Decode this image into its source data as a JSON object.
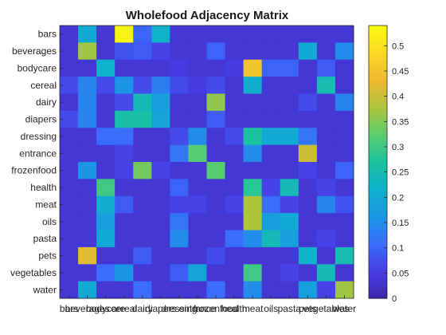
{
  "chart_data": {
    "type": "heatmap",
    "title": "Wholefood Adjacency Matrix",
    "xlabel": "",
    "ylabel": "",
    "categories": [
      "bars",
      "beverages",
      "bodycare",
      "cereal",
      "dairy",
      "diapers",
      "dressing",
      "entrance",
      "frozenfood",
      "health",
      "meat",
      "oils",
      "pasta",
      "pets",
      "vegetables",
      "water"
    ],
    "matrix": [
      [
        0.04,
        0.2,
        0.04,
        0.53,
        0.1,
        0.22,
        0.04,
        0.04,
        0.04,
        0.04,
        0.04,
        0.04,
        0.04,
        0.04,
        0.04,
        0.04
      ],
      [
        0.04,
        0.37,
        0.04,
        0.08,
        0.09,
        0.06,
        0.04,
        0.04,
        0.1,
        0.04,
        0.04,
        0.04,
        0.04,
        0.2,
        0.04,
        0.15
      ],
      [
        0.04,
        0.04,
        0.22,
        0.04,
        0.04,
        0.04,
        0.05,
        0.04,
        0.04,
        0.05,
        0.45,
        0.1,
        0.1,
        0.04,
        0.09,
        0.04
      ],
      [
        0.07,
        0.14,
        0.07,
        0.16,
        0.07,
        0.13,
        0.07,
        0.05,
        0.07,
        0.04,
        0.21,
        0.04,
        0.04,
        0.04,
        0.25,
        0.04
      ],
      [
        0.04,
        0.14,
        0.04,
        0.07,
        0.24,
        0.18,
        0.04,
        0.04,
        0.36,
        0.04,
        0.04,
        0.04,
        0.04,
        0.07,
        0.04,
        0.14
      ],
      [
        0.07,
        0.14,
        0.04,
        0.26,
        0.26,
        0.19,
        0.04,
        0.04,
        0.09,
        0.04,
        0.04,
        0.04,
        0.04,
        0.04,
        0.04,
        0.04
      ],
      [
        0.04,
        0.04,
        0.11,
        0.11,
        0.04,
        0.04,
        0.07,
        0.15,
        0.04,
        0.07,
        0.27,
        0.2,
        0.2,
        0.12,
        0.04,
        0.04
      ],
      [
        0.04,
        0.04,
        0.04,
        0.06,
        0.04,
        0.04,
        0.12,
        0.32,
        0.04,
        0.04,
        0.15,
        0.04,
        0.04,
        0.4,
        0.04,
        0.04
      ],
      [
        0.04,
        0.16,
        0.04,
        0.06,
        0.34,
        0.06,
        0.04,
        0.04,
        0.32,
        0.04,
        0.04,
        0.04,
        0.04,
        0.06,
        0.04,
        0.1
      ],
      [
        0.04,
        0.04,
        0.3,
        0.04,
        0.04,
        0.04,
        0.1,
        0.04,
        0.04,
        0.04,
        0.28,
        0.06,
        0.24,
        0.04,
        0.06,
        0.04
      ],
      [
        0.04,
        0.04,
        0.21,
        0.09,
        0.04,
        0.04,
        0.06,
        0.06,
        0.04,
        0.06,
        0.38,
        0.11,
        0.06,
        0.04,
        0.14,
        0.08
      ],
      [
        0.04,
        0.04,
        0.18,
        0.04,
        0.04,
        0.04,
        0.12,
        0.04,
        0.04,
        0.04,
        0.38,
        0.18,
        0.2,
        0.04,
        0.04,
        0.04
      ],
      [
        0.04,
        0.04,
        0.2,
        0.04,
        0.04,
        0.04,
        0.15,
        0.04,
        0.04,
        0.11,
        0.15,
        0.24,
        0.18,
        0.04,
        0.06,
        0.04
      ],
      [
        0.04,
        0.42,
        0.04,
        0.04,
        0.09,
        0.04,
        0.04,
        0.04,
        0.07,
        0.04,
        0.04,
        0.04,
        0.04,
        0.22,
        0.04,
        0.25
      ],
      [
        0.04,
        0.04,
        0.11,
        0.16,
        0.04,
        0.04,
        0.09,
        0.19,
        0.04,
        0.04,
        0.3,
        0.04,
        0.06,
        0.04,
        0.24,
        0.04
      ],
      [
        0.04,
        0.2,
        0.04,
        0.04,
        0.11,
        0.04,
        0.04,
        0.04,
        0.11,
        0.04,
        0.15,
        0.04,
        0.04,
        0.18,
        0.06,
        0.37
      ]
    ],
    "colorbar": {
      "colormap": "parula",
      "min": 0,
      "max": 0.54,
      "ticks": [
        0,
        0.05,
        0.1,
        0.15,
        0.2,
        0.25,
        0.3,
        0.35,
        0.4,
        0.45,
        0.5
      ],
      "tick_labels": [
        "0",
        "0.05",
        "0.1",
        "0.15",
        "0.2",
        "0.25",
        "0.3",
        "0.35",
        "0.4",
        "0.45",
        "0.5"
      ]
    },
    "grid": false,
    "legend": "none"
  }
}
